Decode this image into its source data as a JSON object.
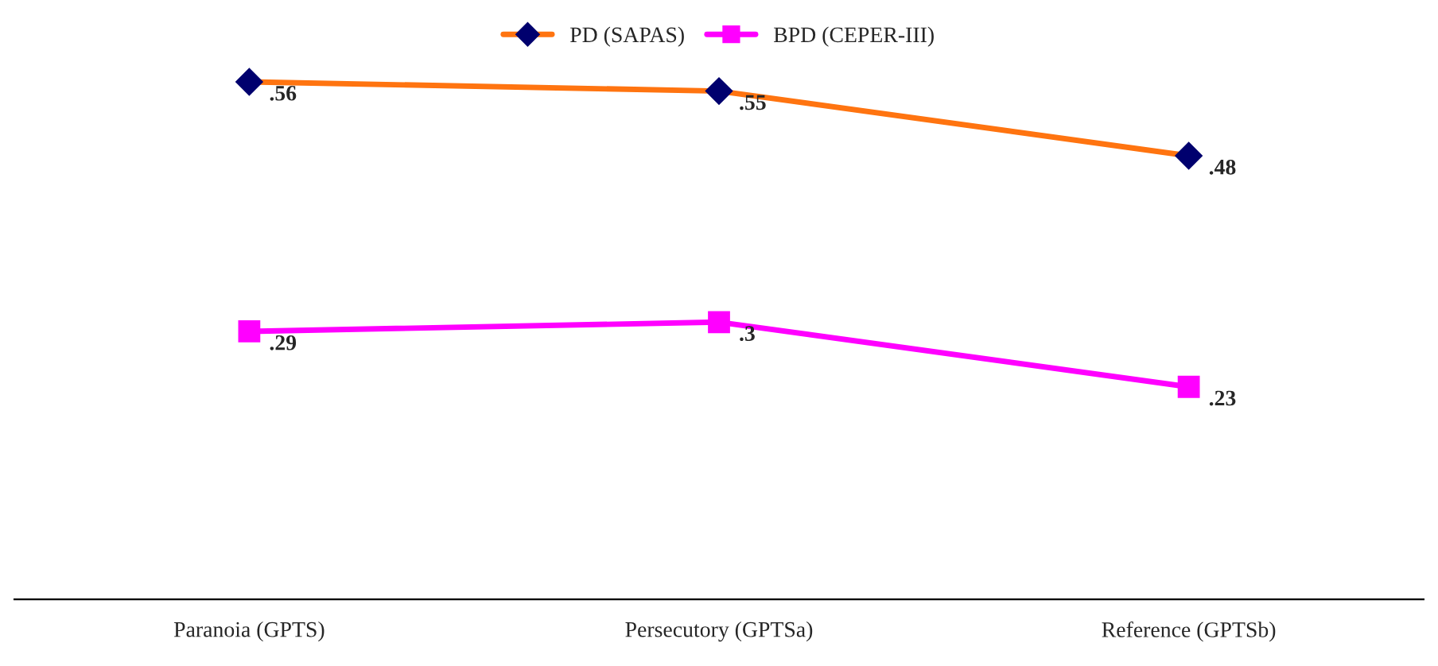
{
  "chart_data": {
    "type": "line",
    "categories": [
      "Paranoia (GPTS)",
      "Persecutory (GPTSa)",
      "Reference (GPTSb)"
    ],
    "series": [
      {
        "name": "PD (SAPAS)",
        "color": "#ff7410",
        "colors": [
          "#00006e",
          "#00006e",
          "#00006e"
        ],
        "marker": "diamond",
        "values": [
          0.56,
          0.55,
          0.48
        ],
        "value_labels": [
          ".56",
          ".55",
          ".48"
        ]
      },
      {
        "name": "BPD (CEPER-III)",
        "color": "#ff00ff",
        "colors": [
          "#ff00ff",
          "#ff00ff",
          "#ff00ff"
        ],
        "marker": "square",
        "values": [
          0.29,
          0.3,
          0.23
        ],
        "value_labels": [
          ".29",
          ".3",
          ".23"
        ]
      }
    ],
    "tick_labels": "x",
    "grid": false,
    "legend": "top",
    "line_style": "solid"
  }
}
